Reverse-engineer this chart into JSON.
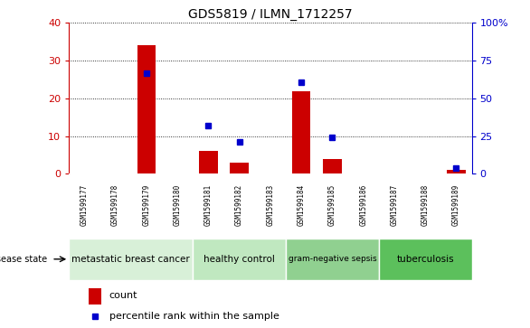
{
  "title": "GDS5819 / ILMN_1712257",
  "samples": [
    "GSM1599177",
    "GSM1599178",
    "GSM1599179",
    "GSM1599180",
    "GSM1599181",
    "GSM1599182",
    "GSM1599183",
    "GSM1599184",
    "GSM1599185",
    "GSM1599186",
    "GSM1599187",
    "GSM1599188",
    "GSM1599189"
  ],
  "counts": [
    0,
    0,
    34,
    0,
    6,
    3,
    0,
    22,
    4,
    0,
    0,
    0,
    1
  ],
  "percentiles": [
    null,
    null,
    67,
    null,
    32,
    21,
    null,
    61,
    24,
    null,
    null,
    null,
    4
  ],
  "ylim_left": [
    0,
    40
  ],
  "ylim_right": [
    0,
    100
  ],
  "yticks_left": [
    0,
    10,
    20,
    30,
    40
  ],
  "yticks_right": [
    0,
    25,
    50,
    75,
    100
  ],
  "yticklabels_right": [
    "0",
    "25",
    "50",
    "75",
    "100%"
  ],
  "disease_groups": [
    {
      "label": "metastatic breast cancer",
      "start": 0,
      "end": 3,
      "color": "#d8f0d8"
    },
    {
      "label": "healthy control",
      "start": 4,
      "end": 6,
      "color": "#c0e8c0"
    },
    {
      "label": "gram-negative sepsis",
      "start": 7,
      "end": 9,
      "color": "#90d090"
    },
    {
      "label": "tuberculosis",
      "start": 10,
      "end": 12,
      "color": "#5cc05c"
    }
  ],
  "bar_color": "#cc0000",
  "marker_color": "#0000cc",
  "tick_area_bg": "#c8c8c8",
  "left_ytick_color": "#cc0000",
  "right_ytick_color": "#0000cc",
  "legend_count_label": "count",
  "legend_pct_label": "percentile rank within the sample",
  "disease_state_label": "disease state"
}
